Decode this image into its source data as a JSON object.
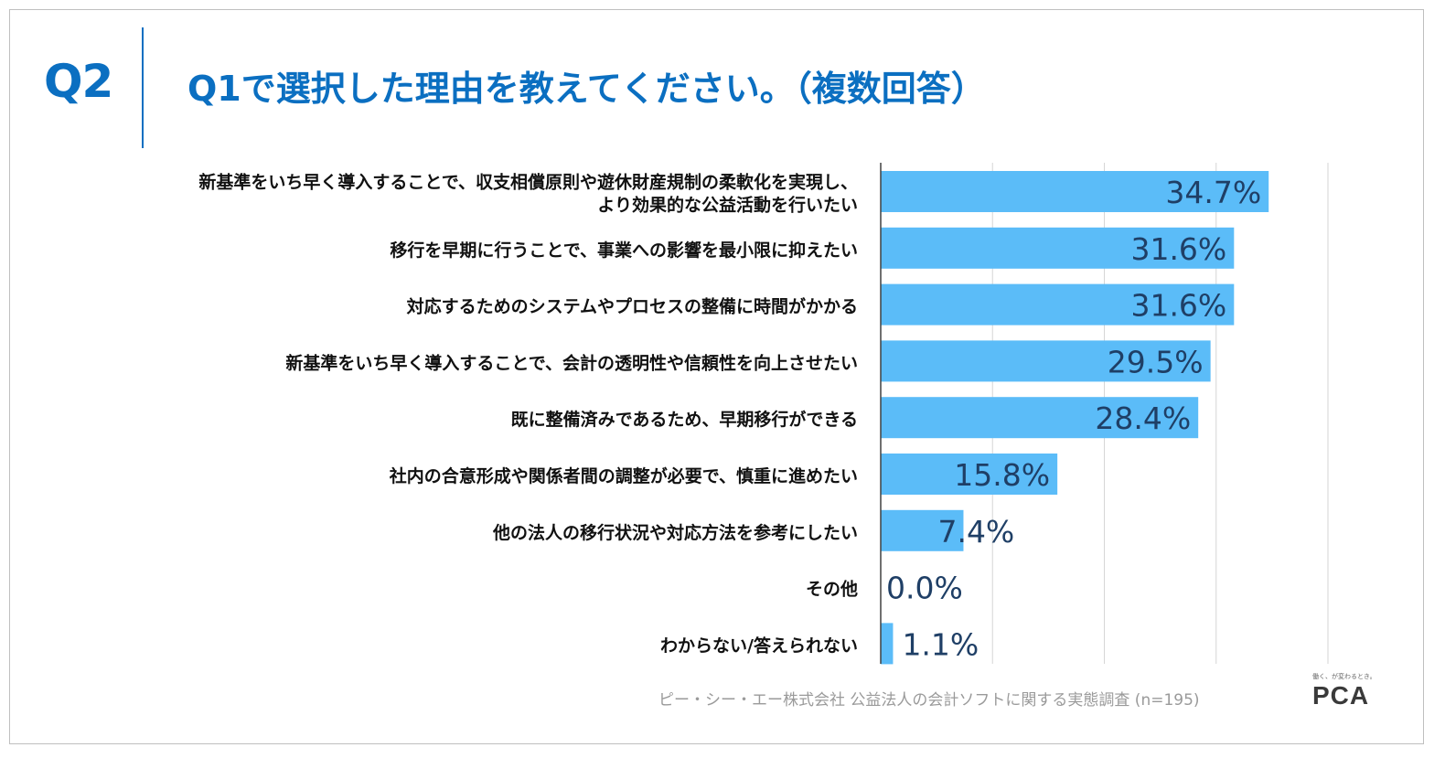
{
  "question": {
    "number": "Q2",
    "title": "Q1で選択した理由を教えてください。（複数回答）"
  },
  "chart_data": {
    "type": "bar",
    "orientation": "horizontal",
    "categories": [
      [
        "新基準をいち早く導入することで、収支相償原則や遊休財産規制の柔軟化を実現し、",
        "より効果的な公益活動を行いたい"
      ],
      [
        "移行を早期に行うことで、事業への影響を最小限に抑えたい"
      ],
      [
        "対応するためのシステムやプロセスの整備に時間がかかる"
      ],
      [
        "新基準をいち早く導入することで、会計の透明性や信頼性を向上させたい"
      ],
      [
        "既に整備済みであるため、早期移行ができる"
      ],
      [
        "社内の合意形成や関係者間の調整が必要で、慎重に進めたい"
      ],
      [
        "他の法人の移行状況や対応方法を参考にしたい"
      ],
      [
        "その他"
      ],
      [
        "わからない/答えられない"
      ]
    ],
    "values": [
      34.7,
      31.6,
      31.6,
      29.5,
      28.4,
      15.8,
      7.4,
      0.0,
      1.1
    ],
    "value_labels": [
      "34.7%",
      "31.6%",
      "31.6%",
      "29.5%",
      "28.4%",
      "15.8%",
      "7.4%",
      "0.0%",
      "1.1%"
    ],
    "xlim": [
      0,
      40
    ],
    "grid": true,
    "bar_color": "#5bbcf8",
    "label_color": "#1f3f66"
  },
  "footer": {
    "source": "ピー・シー・エー株式会社 公益法人の会計ソフトに関する実態調査 (n=195)"
  },
  "logo": {
    "tagline": "働く、が変わるとき。",
    "text": "PCA"
  },
  "colors": {
    "accent": "#0b6fc1"
  }
}
